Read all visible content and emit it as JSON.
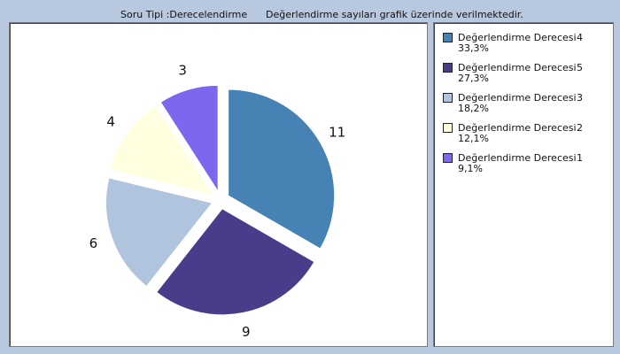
{
  "header": {
    "question_type": "Soru Tipi :Derecelendirme",
    "note": "Değerlendirme sayıları grafik üzerinde verilmektedir."
  },
  "chart_data": {
    "type": "pie",
    "categories": [
      "4",
      "5",
      "3",
      "2",
      "1"
    ],
    "values": [
      11,
      9,
      6,
      4,
      3
    ],
    "colors": [
      "#4682b4",
      "#483d8b",
      "#b0c4de",
      "#ffffe0",
      "#7b68ee"
    ],
    "legend_position": "right",
    "legend": [
      {
        "name": "Değerlendirme Derecesi",
        "value": "4",
        "percent": "33,3%"
      },
      {
        "name": "Değerlendirme Derecesi",
        "value": "5",
        "percent": "27,3%"
      },
      {
        "name": "Değerlendirme Derecesi",
        "value": "3",
        "percent": "18,2%"
      },
      {
        "name": "Değerlendirme Derecesi",
        "value": "2",
        "percent": "12,1%"
      },
      {
        "name": "Değerlendirme Derecesi",
        "value": "1",
        "percent": "9,1%"
      }
    ]
  }
}
